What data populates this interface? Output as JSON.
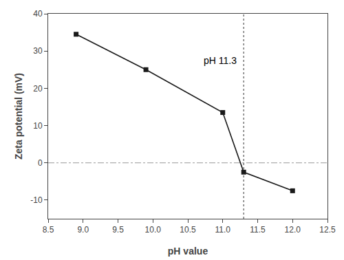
{
  "chart_data": {
    "type": "line",
    "x": [
      8.9,
      9.9,
      11.0,
      11.3,
      12.0
    ],
    "values": [
      34.5,
      25.0,
      13.5,
      -2.5,
      -7.5
    ],
    "color": "#1a1a1a",
    "marker": "square",
    "line_style": "solid",
    "xlabel": "pH value",
    "ylabel": "Zeta potential (mV)",
    "xlim": [
      8.5,
      12.5
    ],
    "ylim": [
      -15,
      40
    ],
    "xticks": [
      8.5,
      {
        "value": 9.0,
        "label": "9.0"
      },
      9.5,
      {
        "value": 10.0,
        "label": "10.0"
      },
      10.5,
      {
        "value": 11.0,
        "label": "11.0"
      },
      11.5,
      {
        "value": 12.0,
        "label": "12.0"
      },
      12.5
    ],
    "yticks": [
      -10,
      0,
      10,
      20,
      30,
      40
    ],
    "grid": false,
    "hline": {
      "value": 0,
      "color": "#999999",
      "line_style": "dashdot"
    },
    "vline": {
      "value": 11.3,
      "color": "#555555",
      "line_style": "dotted"
    },
    "annotations": [
      {
        "text": "pH 11.3",
        "x": 11.22,
        "y": 27.5
      }
    ]
  }
}
